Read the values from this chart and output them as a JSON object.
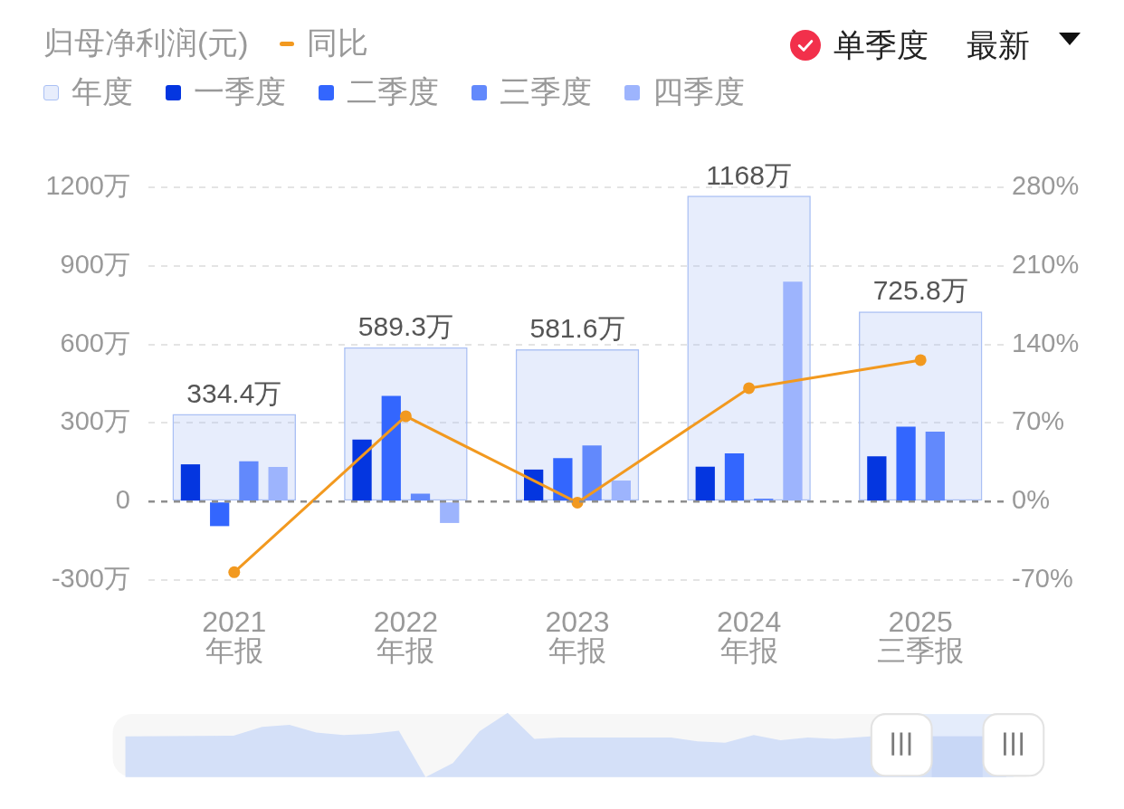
{
  "chart_data": {
    "type": "bar",
    "title": "归母净利润(元)",
    "categories": [
      "2021\n年报",
      "2022\n年报",
      "2023\n年报",
      "2024\n年报",
      "2025\n三季报"
    ],
    "series": [
      {
        "name": "年度",
        "color": "#aac0f4",
        "values": [
          334.4,
          589.3,
          581.6,
          1168,
          725.8
        ],
        "value_labels": [
          "334.4万",
          "589.3万",
          "581.6万",
          "1168万",
          "725.8万"
        ]
      },
      {
        "name": "一季度",
        "color": "#0436e0",
        "values": [
          142,
          237,
          122,
          133,
          173
        ]
      },
      {
        "name": "二季度",
        "color": "#3366fe",
        "values": [
          -94,
          403,
          166,
          184,
          286
        ]
      },
      {
        "name": "三季度",
        "color": "#6289fc",
        "values": [
          154,
          30,
          214,
          11,
          267
        ]
      },
      {
        "name": "四季度",
        "color": "#9db4fd",
        "values": [
          132,
          -82,
          80,
          840,
          null
        ]
      },
      {
        "name": "同比",
        "type": "line",
        "axis": "y2",
        "color": "#f2991f",
        "values": [
          -63,
          76,
          -1,
          101,
          126
        ]
      }
    ],
    "ylim": [
      -300,
      1200
    ],
    "yticks": [
      {
        "value": -300,
        "label": "-300万"
      },
      0,
      {
        "value": 300,
        "label": "300万"
      },
      {
        "value": 600,
        "label": "600万"
      },
      {
        "value": 900,
        "label": "900万"
      },
      {
        "value": 1200,
        "label": "1200万"
      }
    ],
    "y2lim": [
      -70,
      280
    ],
    "y2ticks": [
      {
        "value": -70,
        "label": "-70%"
      },
      {
        "value": 0,
        "label": "0%"
      },
      {
        "value": 70,
        "label": "70%"
      },
      {
        "value": 140,
        "label": "140%"
      },
      {
        "value": 210,
        "label": "210%"
      },
      {
        "value": 280,
        "label": "280%"
      }
    ],
    "ref_lines": [
      {
        "axis": "y",
        "value": 0,
        "color": "#8e8e8e",
        "line_style": "dashed"
      }
    ],
    "grid": "y",
    "legend": "top left",
    "marker": "circle",
    "annotations": [
      "单季度",
      "最新"
    ]
  }
}
